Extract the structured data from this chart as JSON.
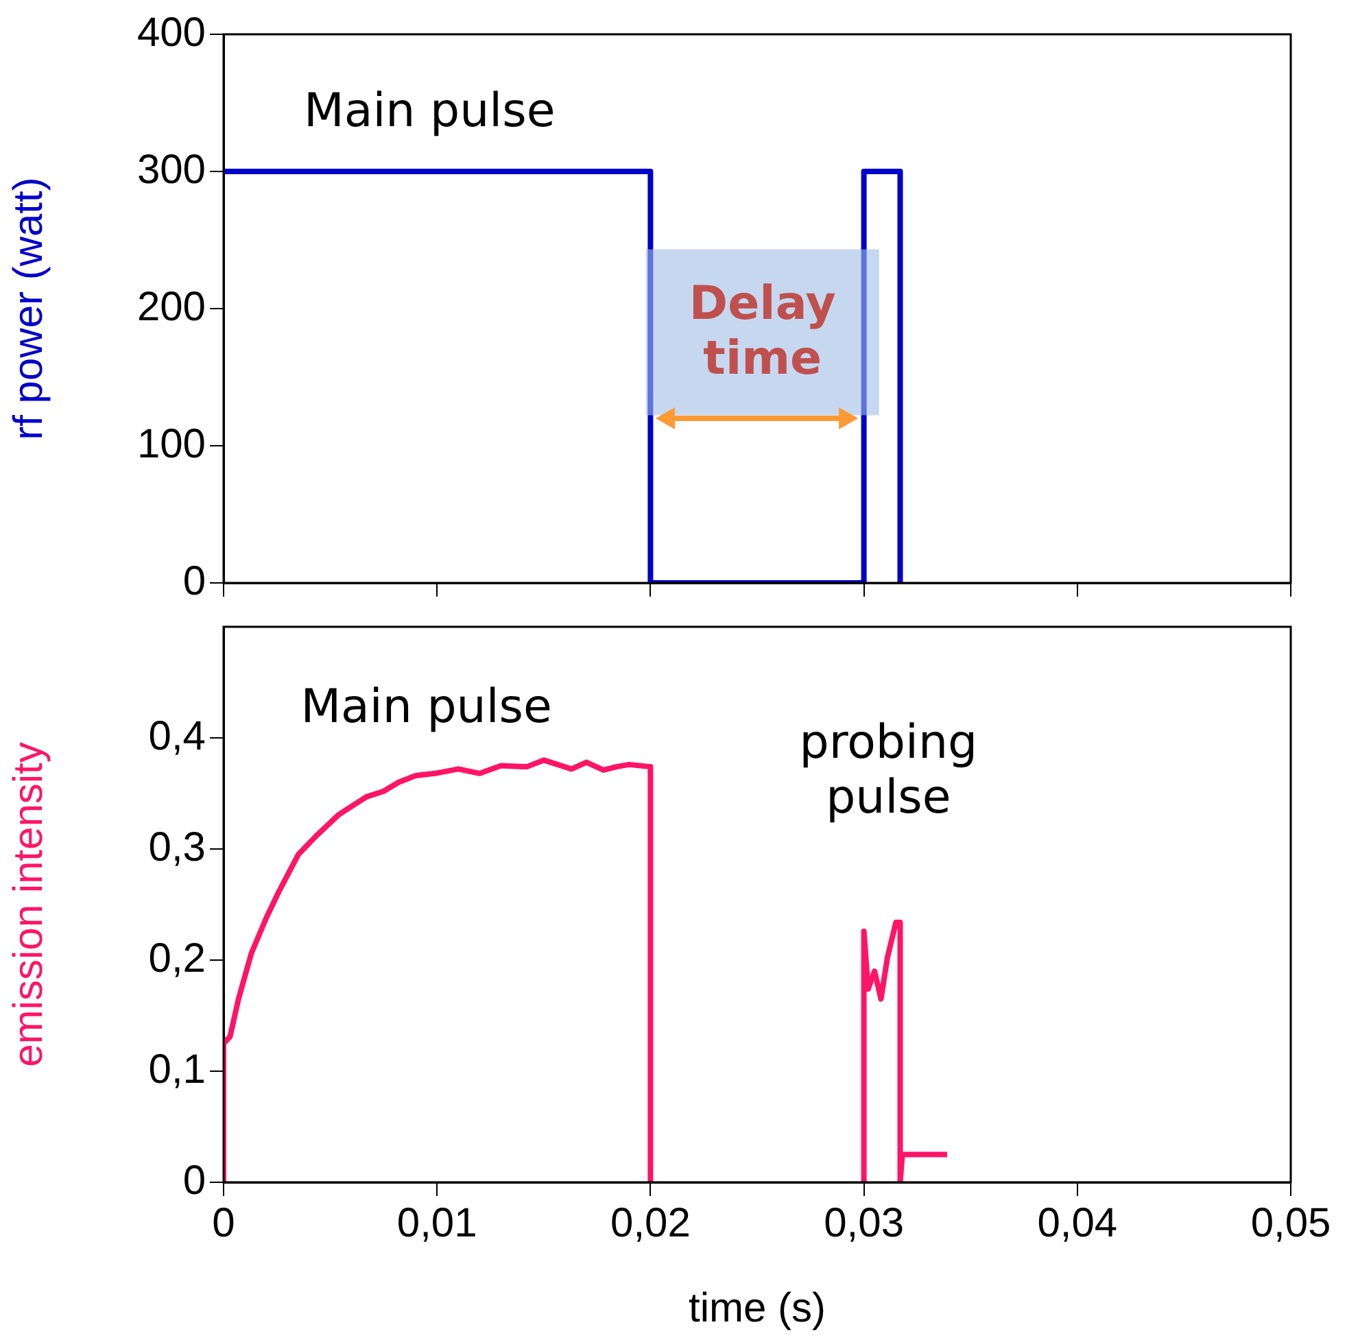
{
  "chart_data": [
    {
      "type": "line",
      "ylabel": "rf power (watt)",
      "xlim": [
        0,
        0.05
      ],
      "ylim": [
        0,
        400
      ],
      "xticks": [
        {
          "value": 0,
          "label": null
        },
        {
          "value": 0.01,
          "label": null
        },
        {
          "value": 0.02,
          "label": null
        },
        {
          "value": 0.03,
          "label": null
        },
        {
          "value": 0.04,
          "label": null
        },
        {
          "value": 0.05,
          "label": null
        }
      ],
      "yticks": [
        0,
        100,
        200,
        300,
        400
      ],
      "tick_labels": "y",
      "legend": false,
      "series": [
        {
          "color": "#0000cc",
          "x": [
            0,
            0.02,
            0.02,
            0.03,
            0.03,
            0.0317,
            0.0317
          ],
          "values": [
            300,
            300,
            0,
            0,
            300,
            300,
            0
          ]
        }
      ],
      "annotations": [
        "Main pulse",
        "Delay time"
      ]
    },
    {
      "type": "line",
      "xlabel": "time (s)",
      "ylabel": "emission intensity",
      "xlim": [
        0,
        0.05
      ],
      "ylim": [
        0,
        0.5
      ],
      "xticks": [
        {
          "value": 0,
          "label": "0"
        },
        {
          "value": 0.01,
          "label": "0,01"
        },
        {
          "value": 0.02,
          "label": "0,02"
        },
        {
          "value": 0.03,
          "label": "0,03"
        },
        {
          "value": 0.04,
          "label": "0,04"
        },
        {
          "value": 0.05,
          "label": "0,05"
        }
      ],
      "yticks": [
        {
          "value": 0,
          "label": "0"
        },
        {
          "value": 0.1,
          "label": "0,1"
        },
        {
          "value": 0.2,
          "label": "0,2"
        },
        {
          "value": 0.3,
          "label": "0,3"
        },
        {
          "value": 0.4,
          "label": "0,4"
        }
      ],
      "legend": false,
      "series": [
        {
          "color": "#ff1466",
          "x": [
            0,
            0,
            0.0003,
            0.0007,
            0.0013,
            0.002,
            0.0026,
            0.0035,
            0.0043,
            0.0054,
            0.0067,
            0.0075,
            0.0082,
            0.009,
            0.0099,
            0.011,
            0.012,
            0.013,
            0.0142,
            0.015,
            0.0163,
            0.017,
            0.0178,
            0.0184,
            0.019,
            0.02,
            0.02,
            0.021,
            0.03,
            0.03,
            0.0302,
            0.0305,
            0.0308,
            0.0311,
            0.0315,
            0.0317,
            0.0317,
            0.0318,
            0.0339
          ],
          "values": [
            0,
            0.125,
            0.131,
            0.165,
            0.206,
            0.238,
            0.262,
            0.295,
            0.311,
            0.331,
            0.347,
            0.352,
            0.36,
            0.366,
            0.368,
            0.372,
            0.368,
            0.375,
            0.374,
            0.38,
            0.372,
            0.378,
            0.371,
            0.374,
            0.376,
            0.374,
            0,
            null,
            0,
            0.226,
            0.174,
            0.19,
            0.165,
            0.202,
            0.234,
            0.234,
            0,
            0.025,
            0.025
          ]
        }
      ],
      "annotations": [
        "Main pulse",
        "probing pulse"
      ]
    }
  ]
}
